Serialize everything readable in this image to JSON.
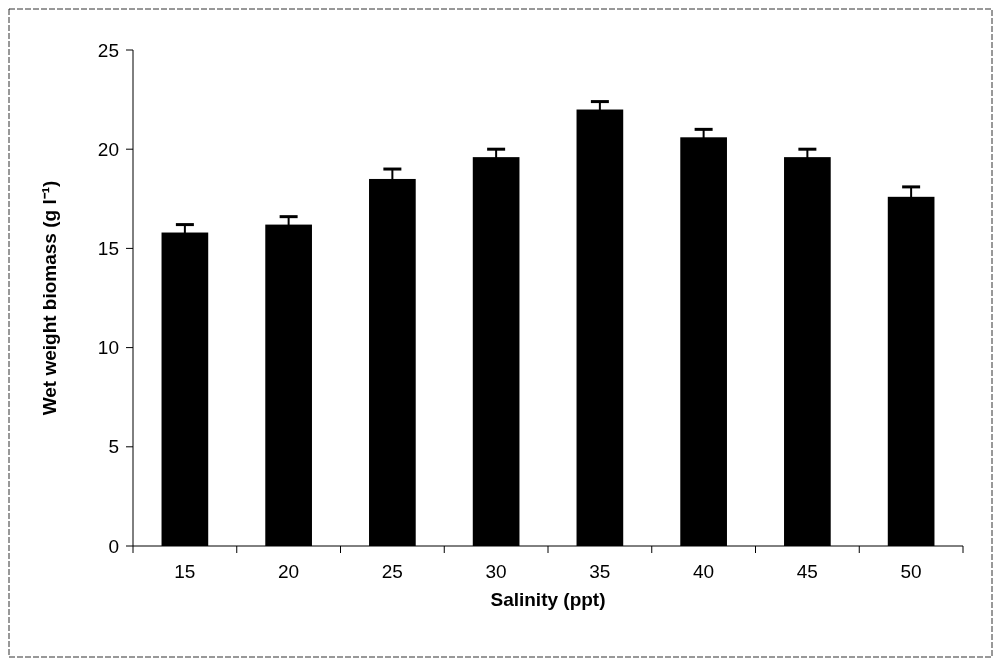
{
  "chart_data": {
    "type": "bar",
    "xlabel": "Salinity (ppt)",
    "ylabel": "Wet weight biomass (g l⁻¹)",
    "categories": [
      "15",
      "20",
      "25",
      "30",
      "35",
      "40",
      "45",
      "50"
    ],
    "values": [
      15.8,
      16.2,
      18.5,
      19.6,
      22.0,
      20.6,
      19.6,
      17.6
    ],
    "errors": [
      0.4,
      0.4,
      0.5,
      0.4,
      0.4,
      0.4,
      0.4,
      0.5
    ],
    "color": "#000000",
    "ylim": [
      0,
      25
    ],
    "yticks": [
      0,
      5,
      10,
      15,
      20,
      25
    ],
    "grid": false
  }
}
